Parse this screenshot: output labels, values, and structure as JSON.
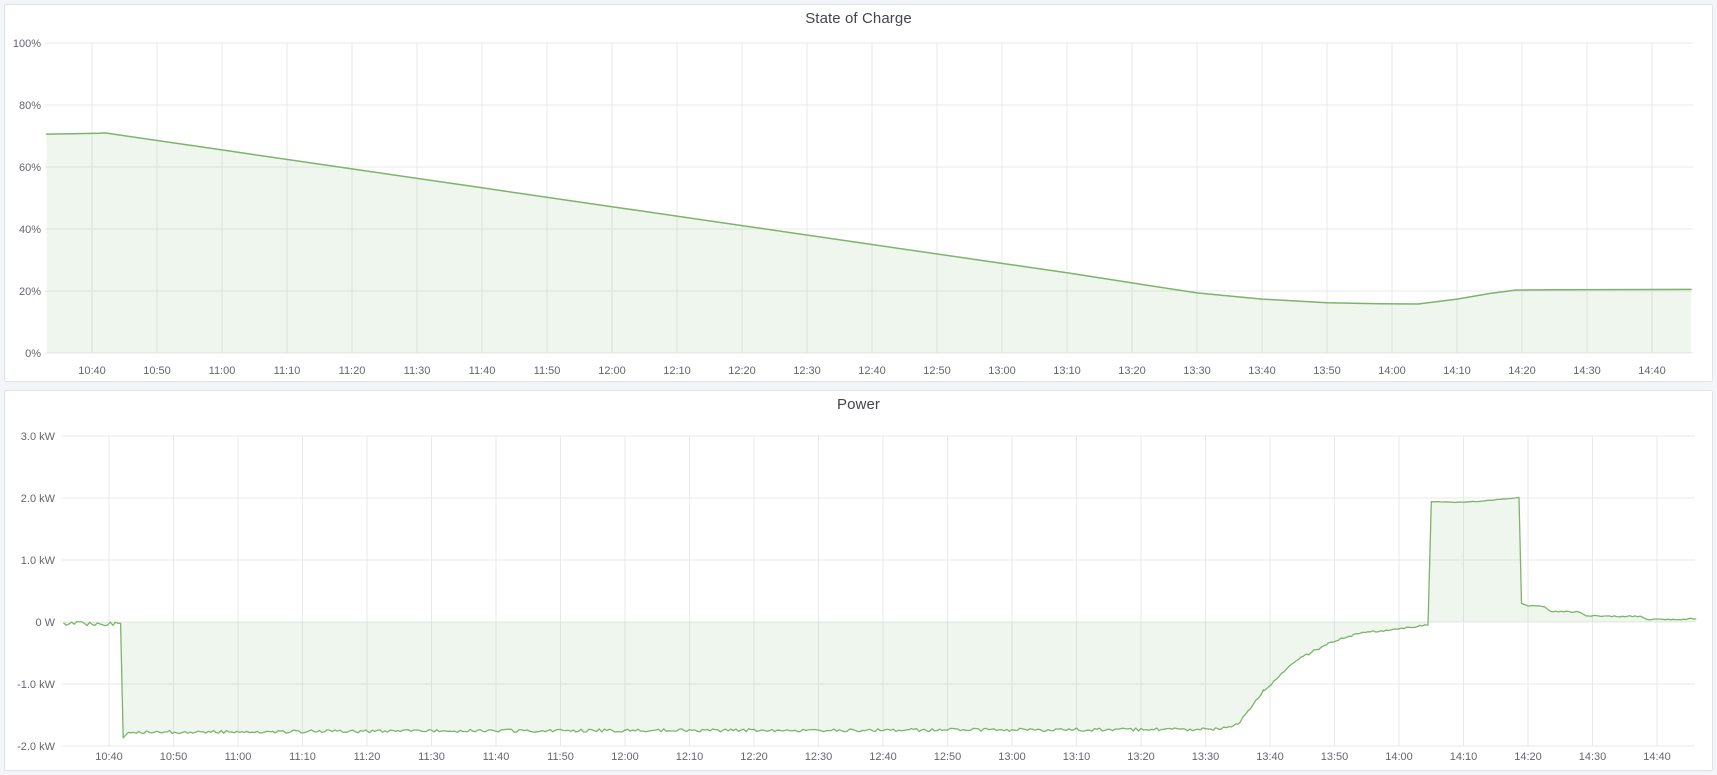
{
  "app": {
    "kind": "dashboard-time-series-panels"
  },
  "panels": [
    {
      "title": "State of Charge"
    },
    {
      "title": "Power"
    }
  ],
  "colors": {
    "series_green": "#7db46c",
    "series_fill": "rgba(125,180,108,0.12)",
    "grid": "#e8e9eb",
    "axis_text": "#64666e",
    "title_text": "#44464c",
    "panel_border": "#dfe2e8",
    "page_background": "#f4f5f9"
  },
  "chart_data": [
    {
      "type": "area",
      "title": "State of Charge",
      "unit": "%",
      "ylim": [
        0,
        100
      ],
      "grid": true,
      "legend": "none",
      "y_ticks": {
        "values": [
          100,
          80,
          60,
          40,
          20,
          0
        ],
        "labels": [
          "100%",
          "80%",
          "60%",
          "40%",
          "20%",
          "0%"
        ]
      },
      "x_ticks": {
        "minutes": [
          640,
          650,
          660,
          670,
          680,
          690,
          700,
          710,
          720,
          730,
          740,
          750,
          760,
          770,
          780,
          790,
          800,
          810,
          820,
          830,
          840,
          850,
          860,
          870,
          880
        ],
        "labels": [
          "10:40",
          "10:50",
          "11:00",
          "11:10",
          "11:20",
          "11:30",
          "11:40",
          "11:50",
          "12:00",
          "12:10",
          "12:20",
          "12:30",
          "12:40",
          "12:50",
          "13:00",
          "13:10",
          "13:20",
          "13:30",
          "13:40",
          "13:50",
          "14:00",
          "14:10",
          "14:20",
          "14:30",
          "14:40"
        ]
      },
      "x_range": {
        "start": "10:33",
        "end": "14:46"
      },
      "series": [
        {
          "name": "State of Charge",
          "color": "#7db46c",
          "fill_opacity": 0.12,
          "points_format": "[minutes_since_midnight, percent]",
          "points": [
            [
              633,
              70.6
            ],
            [
              637,
              70.7
            ],
            [
              641,
              70.9
            ],
            [
              642,
              71.0
            ],
            [
              660,
              65.5
            ],
            [
              680,
              59.4
            ],
            [
              700,
              53.3
            ],
            [
              720,
              47.2
            ],
            [
              740,
              41.1
            ],
            [
              760,
              35.0
            ],
            [
              780,
              28.9
            ],
            [
              790,
              25.9
            ],
            [
              800,
              22.6
            ],
            [
              810,
              19.4
            ],
            [
              820,
              17.4
            ],
            [
              830,
              16.2
            ],
            [
              838,
              15.9
            ],
            [
              844,
              15.8
            ],
            [
              850,
              17.4
            ],
            [
              855,
              19.2
            ],
            [
              859,
              20.3
            ],
            [
              865,
              20.4
            ],
            [
              886,
              20.5
            ]
          ]
        }
      ]
    },
    {
      "type": "area",
      "title": "Power",
      "unit": "kW",
      "ylim": [
        -2.05,
        3.05
      ],
      "grid": true,
      "legend": "none",
      "y_ticks": {
        "values": [
          3,
          2,
          1,
          0,
          -1,
          -2
        ],
        "labels": [
          "3.0 kW",
          "2.0 kW",
          "1.0 kW",
          "0 W",
          "-1.0 kW",
          "-2.0 kW"
        ]
      },
      "x_ticks": {
        "minutes": [
          640,
          650,
          660,
          670,
          680,
          690,
          700,
          710,
          720,
          730,
          740,
          750,
          760,
          770,
          780,
          790,
          800,
          810,
          820,
          830,
          840,
          850,
          860,
          870,
          880
        ],
        "labels": [
          "10:40",
          "10:50",
          "11:00",
          "11:10",
          "11:20",
          "11:30",
          "11:40",
          "11:50",
          "12:00",
          "12:10",
          "12:20",
          "12:30",
          "12:40",
          "12:50",
          "13:00",
          "13:10",
          "13:20",
          "13:30",
          "13:40",
          "13:50",
          "14:00",
          "14:10",
          "14:20",
          "14:30",
          "14:40"
        ]
      },
      "x_range": {
        "start": "10:33",
        "end": "14:46"
      },
      "series": [
        {
          "name": "Power",
          "color": "#7db46c",
          "fill_opacity": 0.12,
          "points_format": "[minutes_since_midnight, kW, noise_amplitude_kW_of_following_segment]",
          "points": [
            [
              633,
              -0.02,
              0.035
            ],
            [
              641.8,
              -0.03,
              0
            ],
            [
              642.2,
              -1.87,
              0
            ],
            [
              643,
              -1.78,
              0.025
            ],
            [
              680,
              -1.76,
              0.025
            ],
            [
              720,
              -1.75,
              0.025
            ],
            [
              780,
              -1.74,
              0.025
            ],
            [
              812,
              -1.73,
              0.02
            ],
            [
              815,
              -1.65,
              0.02
            ],
            [
              819,
              -1.11,
              0.02
            ],
            [
              824,
              -0.63,
              0.02
            ],
            [
              829,
              -0.34,
              0.018
            ],
            [
              834,
              -0.18,
              0.015
            ],
            [
              840,
              -0.11,
              0.012
            ],
            [
              844.5,
              -0.05,
              0
            ],
            [
              845,
              1.94,
              0.006
            ],
            [
              849,
              1.93,
              0.006
            ],
            [
              853,
              1.95,
              0.005
            ],
            [
              858,
              2.0,
              0
            ],
            [
              858.6,
              2.01,
              0
            ],
            [
              859,
              0.3,
              0
            ],
            [
              860,
              0.26,
              0.012
            ],
            [
              862.5,
              0.25,
              0.012
            ],
            [
              863.5,
              0.17,
              0.01
            ],
            [
              868,
              0.16,
              0.01
            ],
            [
              869,
              0.1,
              0.01
            ],
            [
              877.5,
              0.09,
              0.01
            ],
            [
              878.5,
              0.04,
              0.012
            ],
            [
              886,
              0.05,
              0
            ]
          ]
        }
      ]
    }
  ]
}
